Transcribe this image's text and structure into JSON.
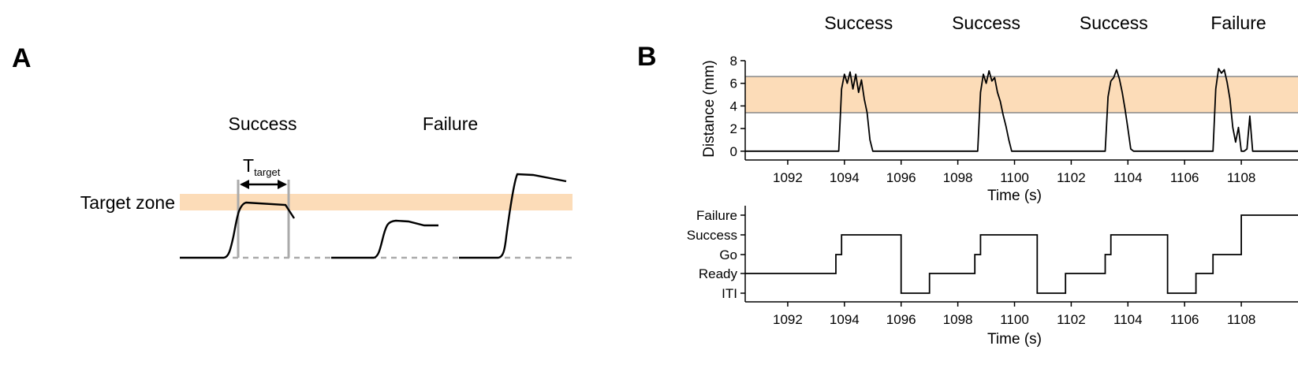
{
  "panels": {
    "a": {
      "letter": "A"
    },
    "b": {
      "letter": "B"
    }
  },
  "colors": {
    "target_zone": "#fcdcb8",
    "trace": "#000000",
    "guide": "#aaaaaa"
  },
  "schematic": {
    "labels": {
      "success": "Success",
      "failure": "Failure",
      "target_zone": "Target zone",
      "t_main": "T",
      "t_sub": "target"
    }
  },
  "chart_data": [
    {
      "type": "line",
      "xlabel": "Time (s)",
      "ylabel": "Distance (mm)",
      "xlim": [
        1090.5,
        1110
      ],
      "ylim": [
        -0.5,
        8
      ],
      "xticks": [
        1092,
        1094,
        1096,
        1098,
        1100,
        1102,
        1104,
        1106,
        1108
      ],
      "yticks": [
        0,
        2,
        4,
        6,
        8
      ],
      "target_zone": [
        3.4,
        6.6
      ],
      "trial_labels": [
        {
          "x": 1094.5,
          "label": "Success"
        },
        {
          "x": 1099.0,
          "label": "Success"
        },
        {
          "x": 1103.5,
          "label": "Success"
        },
        {
          "x": 1107.9,
          "label": "Failure"
        }
      ],
      "series": [
        {
          "x": [
            1090.5,
            1093.8,
            1093.9,
            1094.0,
            1094.1,
            1094.2,
            1094.3,
            1094.4,
            1094.5,
            1094.6,
            1094.7,
            1094.8,
            1094.9,
            1095.0,
            1097.0,
            1098.7,
            1098.8,
            1098.9,
            1099.0,
            1099.1,
            1099.2,
            1099.3,
            1099.4,
            1099.5,
            1099.6,
            1099.7,
            1099.8,
            1099.9,
            1100.0,
            1102.0,
            1103.2,
            1103.3,
            1103.4,
            1103.5,
            1103.6,
            1103.7,
            1103.8,
            1103.9,
            1104.0,
            1104.1,
            1104.2,
            1104.3,
            1104.4,
            1106.0,
            1107.0,
            1107.1,
            1107.2,
            1107.3,
            1107.4,
            1107.5,
            1107.6,
            1107.7,
            1107.8,
            1107.9,
            1108.0,
            1108.1,
            1108.2,
            1108.3,
            1108.4,
            1108.5,
            1110.0
          ],
          "y": [
            0,
            0,
            5.5,
            6.8,
            6.0,
            7.0,
            5.5,
            6.8,
            5.2,
            6.3,
            4.6,
            3.4,
            1.0,
            0,
            0,
            0,
            5.2,
            6.8,
            6.0,
            7.1,
            6.2,
            6.5,
            5.2,
            4.4,
            3.2,
            2.2,
            1.0,
            0,
            0,
            0,
            0,
            4.8,
            6.2,
            6.5,
            7.2,
            6.4,
            5.2,
            3.7,
            2.0,
            0.2,
            0,
            0,
            0,
            0,
            0,
            5.5,
            7.3,
            6.9,
            7.2,
            6.1,
            4.6,
            2.1,
            0.8,
            2.1,
            0,
            0,
            0.2,
            3.1,
            0,
            0,
            0
          ]
        }
      ]
    },
    {
      "type": "line",
      "xlabel": "Time (s)",
      "xlim": [
        1090.5,
        1110
      ],
      "xticks": [
        1092,
        1094,
        1096,
        1098,
        1100,
        1102,
        1104,
        1106,
        1108
      ],
      "state_labels": [
        "ITI",
        "Ready",
        "Go",
        "Success",
        "Failure"
      ],
      "series": [
        {
          "x": [
            1090.5,
            1093.7,
            1093.7,
            1093.9,
            1093.9,
            1096.0,
            1096.0,
            1097.0,
            1097.0,
            1098.6,
            1098.6,
            1098.8,
            1098.8,
            1100.8,
            1100.8,
            1101.8,
            1101.8,
            1103.2,
            1103.2,
            1103.4,
            1103.4,
            1105.4,
            1105.4,
            1106.4,
            1106.4,
            1107.0,
            1107.0,
            1108.0,
            1108.0,
            1110.0
          ],
          "y": [
            1,
            1,
            2,
            2,
            3,
            3,
            0,
            0,
            1,
            1,
            2,
            2,
            3,
            3,
            0,
            0,
            1,
            1,
            2,
            2,
            3,
            3,
            0,
            0,
            1,
            1,
            2,
            2,
            4,
            4
          ]
        }
      ]
    }
  ]
}
